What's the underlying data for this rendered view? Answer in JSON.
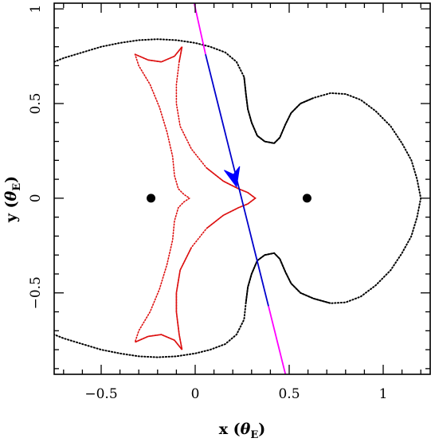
{
  "chart_data": {
    "type": "scatter",
    "title": "",
    "xlabel": {
      "prefix": "x (",
      "symbol": "θ",
      "subscript": "E",
      "suffix": ")"
    },
    "ylabel": {
      "prefix": "y (",
      "symbol": "θ",
      "subscript": "E",
      "suffix": ")"
    },
    "xlim": [
      -0.75,
      1.25
    ],
    "ylim": [
      -0.93,
      1.03
    ],
    "grid": false,
    "x_ticks": [
      {
        "value": -0.5,
        "label": "−0.5"
      },
      {
        "value": 0,
        "label": "0"
      },
      {
        "value": 0.5,
        "label": "0.5"
      },
      {
        "value": 1,
        "label": "1"
      }
    ],
    "y_ticks": [
      {
        "value": -0.5,
        "label": "−0.5"
      },
      {
        "value": 0,
        "label": "0"
      },
      {
        "value": 0.5,
        "label": "0.5"
      },
      {
        "value": 1,
        "label": "1"
      }
    ],
    "lens_positions": [
      {
        "x": -0.235,
        "y": 0.0
      },
      {
        "x": 0.595,
        "y": 0.0
      }
    ],
    "series": [
      {
        "kind": "critical_curve",
        "color": "#000000",
        "points": [
          [
            0.08,
            0.8
          ],
          [
            0.16,
            0.77
          ],
          [
            0.22,
            0.72
          ],
          [
            0.26,
            0.64
          ],
          [
            0.27,
            0.55
          ],
          [
            0.28,
            0.47
          ],
          [
            0.3,
            0.4
          ],
          [
            0.33,
            0.33
          ],
          [
            0.37,
            0.3
          ],
          [
            0.42,
            0.29
          ],
          [
            0.45,
            0.32
          ],
          [
            0.48,
            0.39
          ],
          [
            0.51,
            0.45
          ],
          [
            0.56,
            0.5
          ],
          [
            0.63,
            0.53
          ],
          [
            0.72,
            0.555
          ],
          [
            0.8,
            0.55
          ],
          [
            0.88,
            0.52
          ],
          [
            0.96,
            0.46
          ],
          [
            1.04,
            0.38
          ],
          [
            1.1,
            0.29
          ],
          [
            1.15,
            0.2
          ],
          [
            1.18,
            0.1
          ],
          [
            1.2,
            0.0
          ],
          [
            1.18,
            -0.1
          ],
          [
            1.15,
            -0.2
          ],
          [
            1.1,
            -0.29
          ],
          [
            1.04,
            -0.38
          ],
          [
            0.96,
            -0.46
          ],
          [
            0.88,
            -0.52
          ],
          [
            0.8,
            -0.55
          ],
          [
            0.72,
            -0.555
          ],
          [
            0.63,
            -0.53
          ],
          [
            0.56,
            -0.5
          ],
          [
            0.51,
            -0.45
          ],
          [
            0.48,
            -0.39
          ],
          [
            0.45,
            -0.32
          ],
          [
            0.42,
            -0.29
          ],
          [
            0.37,
            -0.3
          ],
          [
            0.33,
            -0.33
          ],
          [
            0.3,
            -0.4
          ],
          [
            0.28,
            -0.47
          ],
          [
            0.27,
            -0.55
          ],
          [
            0.26,
            -0.64
          ],
          [
            0.22,
            -0.72
          ],
          [
            0.16,
            -0.77
          ],
          [
            0.08,
            -0.8
          ],
          [
            0.0,
            -0.82
          ],
          [
            -0.1,
            -0.835
          ],
          [
            -0.2,
            -0.84
          ],
          [
            -0.3,
            -0.835
          ],
          [
            -0.4,
            -0.82
          ],
          [
            -0.5,
            -0.8
          ],
          [
            -0.6,
            -0.77
          ],
          [
            -0.7,
            -0.74
          ],
          [
            -0.75,
            -0.72
          ]
        ],
        "points_upper": [
          [
            -0.75,
            0.72
          ],
          [
            -0.7,
            0.74
          ],
          [
            -0.6,
            0.77
          ],
          [
            -0.5,
            0.8
          ],
          [
            -0.4,
            0.82
          ],
          [
            -0.3,
            0.835
          ],
          [
            -0.2,
            0.84
          ],
          [
            -0.1,
            0.835
          ],
          [
            0.0,
            0.82
          ],
          [
            0.08,
            0.8
          ]
        ]
      },
      {
        "kind": "caustic",
        "color": "#dd1111",
        "points": [
          [
            -0.32,
            0.76
          ],
          [
            -0.25,
            0.73
          ],
          [
            -0.18,
            0.72
          ],
          [
            -0.11,
            0.75
          ],
          [
            -0.07,
            0.8
          ],
          [
            -0.085,
            0.72
          ],
          [
            -0.1,
            0.6
          ],
          [
            -0.1,
            0.5
          ],
          [
            -0.08,
            0.38
          ],
          [
            -0.02,
            0.26
          ],
          [
            0.06,
            0.16
          ],
          [
            0.15,
            0.09
          ],
          [
            0.23,
            0.05
          ],
          [
            0.28,
            0.03
          ],
          [
            0.32,
            0.0
          ],
          [
            0.28,
            -0.03
          ],
          [
            0.23,
            -0.05
          ],
          [
            0.15,
            -0.09
          ],
          [
            0.06,
            -0.16
          ],
          [
            -0.02,
            -0.26
          ],
          [
            -0.08,
            -0.38
          ],
          [
            -0.1,
            -0.5
          ],
          [
            -0.1,
            -0.6
          ],
          [
            -0.085,
            -0.72
          ],
          [
            -0.07,
            -0.8
          ],
          [
            -0.11,
            -0.75
          ],
          [
            -0.18,
            -0.72
          ],
          [
            -0.25,
            -0.73
          ],
          [
            -0.32,
            -0.76
          ],
          [
            -0.3,
            -0.7
          ],
          [
            -0.24,
            -0.6
          ],
          [
            -0.19,
            -0.48
          ],
          [
            -0.15,
            -0.35
          ],
          [
            -0.12,
            -0.22
          ],
          [
            -0.11,
            -0.12
          ],
          [
            -0.09,
            -0.05
          ],
          [
            -0.06,
            -0.02
          ],
          [
            -0.03,
            0.0
          ],
          [
            -0.06,
            0.02
          ],
          [
            -0.09,
            0.05
          ],
          [
            -0.11,
            0.12
          ],
          [
            -0.12,
            0.22
          ],
          [
            -0.15,
            0.35
          ],
          [
            -0.19,
            0.48
          ],
          [
            -0.24,
            0.6
          ],
          [
            -0.3,
            0.7
          ],
          [
            -0.32,
            0.76
          ]
        ]
      },
      {
        "kind": "trajectory_outer",
        "color": "#ff00ff",
        "segments": [
          [
            [
              -0.005,
              1.03
            ],
            [
              0.055,
              0.76
            ]
          ],
          [
            [
              0.39,
              -0.57
            ],
            [
              0.48,
              -0.93
            ]
          ]
        ]
      },
      {
        "kind": "trajectory_inner",
        "color": "#0000cc",
        "points": [
          [
            0.055,
            0.76
          ],
          [
            0.39,
            -0.57
          ]
        ]
      },
      {
        "kind": "direction_arrow",
        "color": "#0000ff",
        "tip": [
          0.22,
          0.06
        ],
        "direction": [
          0.25,
          -1.0
        ]
      }
    ]
  }
}
